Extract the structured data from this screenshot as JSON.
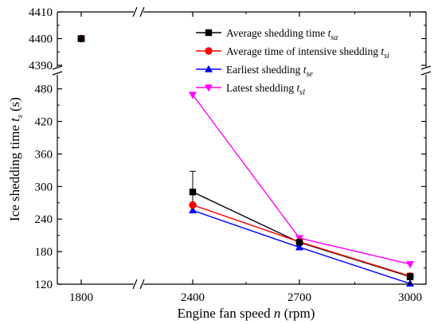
{
  "chart_data": {
    "type": "line",
    "xlabel": "Engine fan speed",
    "xlabel_var": "n",
    "xlabel_unit": "(rpm)",
    "ylabel": "Ice shedding time",
    "ylabel_var": "t",
    "ylabel_sub": "s",
    "ylabel_unit": "(s)",
    "x_ticks": [
      "1800",
      "2400",
      "2700",
      "3000"
    ],
    "x_categories": [
      1800,
      2400,
      2700,
      3000
    ],
    "x_axis_break": "between 1800 and 2400",
    "y_axis_break": "between 4390 and 480",
    "y_lower_ticks": [
      "120",
      "180",
      "240",
      "300",
      "360",
      "420",
      "480"
    ],
    "y_lower_range": [
      120,
      500
    ],
    "y_upper_ticks": [
      "4390",
      "4400",
      "4410"
    ],
    "y_upper_range": [
      4390,
      4410
    ],
    "legend_position": "top-right",
    "series": [
      {
        "name": "Average shedding time",
        "var": "t",
        "sub": "sa",
        "color": "#000000",
        "marker": "square",
        "points": [
          {
            "x": 1800,
            "y": 4400
          },
          {
            "x": 2400,
            "y": 290,
            "err": 38
          },
          {
            "x": 2700,
            "y": 197
          },
          {
            "x": 3000,
            "y": 134,
            "err": 6
          }
        ]
      },
      {
        "name": "Average time of intensive shedding",
        "var": "t",
        "sub": "si",
        "color": "#ff0000",
        "marker": "circle",
        "points": [
          {
            "x": 1800,
            "y": 4400
          },
          {
            "x": 2400,
            "y": 266
          },
          {
            "x": 2700,
            "y": 198
          },
          {
            "x": 3000,
            "y": 135
          }
        ]
      },
      {
        "name": "Earliest shedding",
        "var": "t",
        "sub": "se",
        "color": "#0000ff",
        "marker": "triangle-up",
        "points": [
          {
            "x": 1800,
            "y": 4400
          },
          {
            "x": 2400,
            "y": 256
          },
          {
            "x": 2700,
            "y": 188
          },
          {
            "x": 3000,
            "y": 121
          }
        ]
      },
      {
        "name": "Latest shedding",
        "var": "t",
        "sub": "sl",
        "color": "#ff00ff",
        "marker": "triangle-down",
        "points": [
          {
            "x": 1800,
            "y": 4400
          },
          {
            "x": 2400,
            "y": 469
          },
          {
            "x": 2700,
            "y": 205
          },
          {
            "x": 3000,
            "y": 157
          }
        ]
      }
    ]
  }
}
